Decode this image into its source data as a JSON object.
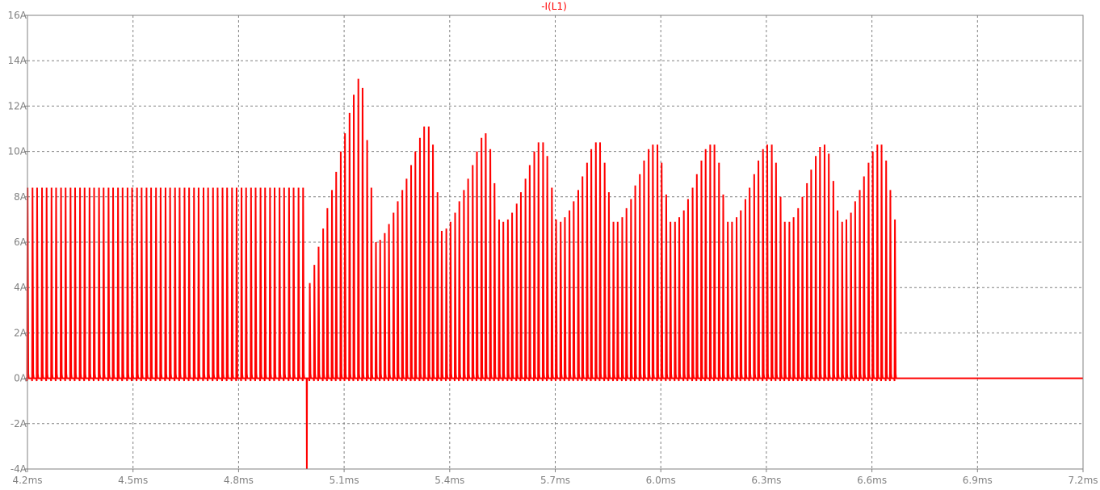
{
  "window": {
    "background": "#ffffff"
  },
  "chart_data": {
    "type": "line",
    "title": "-I(L1)",
    "xlabel": "",
    "ylabel": "",
    "x_unit": "ms",
    "y_unit": "A",
    "xlim": [
      4.2,
      7.2
    ],
    "ylim": [
      -4,
      16
    ],
    "x_ticks": [
      4.2,
      4.5,
      4.8,
      5.1,
      5.4,
      5.7,
      6.0,
      6.3,
      6.6,
      6.9,
      7.2
    ],
    "x_tick_labels": [
      "4.2ms",
      "4.5ms",
      "4.8ms",
      "5.1ms",
      "5.4ms",
      "5.7ms",
      "6.0ms",
      "6.3ms",
      "6.6ms",
      "6.9ms",
      "7.2ms"
    ],
    "y_ticks": [
      -4,
      -2,
      0,
      2,
      4,
      6,
      8,
      10,
      12,
      14,
      16
    ],
    "y_tick_labels": [
      "-4A",
      "-2A",
      "0A",
      "2A",
      "4A",
      "6A",
      "8A",
      "10A",
      "12A",
      "14A",
      "16A"
    ],
    "grid": true,
    "grid_style": "dashed",
    "colors": {
      "trace": "#ff0000",
      "axis": "#808080",
      "grid": "#808080",
      "tick_label": "#808080"
    },
    "series": [
      {
        "name": "-I(L1)",
        "color": "#ff0000",
        "pulse_width_ms": 0.004,
        "baseline": 0,
        "negative_spike": {
          "x": 4.994,
          "y": -4
        },
        "pulses": [
          [
            4.201,
            8.4
          ],
          [
            4.215,
            8.4
          ],
          [
            4.228,
            8.4
          ],
          [
            4.242,
            8.4
          ],
          [
            4.255,
            8.4
          ],
          [
            4.269,
            8.4
          ],
          [
            4.282,
            8.4
          ],
          [
            4.296,
            8.4
          ],
          [
            4.309,
            8.4
          ],
          [
            4.323,
            8.4
          ],
          [
            4.336,
            8.4
          ],
          [
            4.35,
            8.4
          ],
          [
            4.363,
            8.4
          ],
          [
            4.377,
            8.4
          ],
          [
            4.39,
            8.4
          ],
          [
            4.404,
            8.4
          ],
          [
            4.417,
            8.4
          ],
          [
            4.431,
            8.4
          ],
          [
            4.444,
            8.4
          ],
          [
            4.458,
            8.4
          ],
          [
            4.471,
            8.4
          ],
          [
            4.485,
            8.4
          ],
          [
            4.498,
            8.4
          ],
          [
            4.512,
            8.4
          ],
          [
            4.525,
            8.4
          ],
          [
            4.539,
            8.4
          ],
          [
            4.552,
            8.4
          ],
          [
            4.566,
            8.4
          ],
          [
            4.579,
            8.4
          ],
          [
            4.593,
            8.4
          ],
          [
            4.606,
            8.4
          ],
          [
            4.62,
            8.4
          ],
          [
            4.633,
            8.4
          ],
          [
            4.647,
            8.4
          ],
          [
            4.66,
            8.4
          ],
          [
            4.674,
            8.4
          ],
          [
            4.687,
            8.4
          ],
          [
            4.701,
            8.4
          ],
          [
            4.714,
            8.4
          ],
          [
            4.728,
            8.4
          ],
          [
            4.741,
            8.4
          ],
          [
            4.755,
            8.4
          ],
          [
            4.768,
            8.4
          ],
          [
            4.782,
            8.4
          ],
          [
            4.795,
            8.4
          ],
          [
            4.809,
            8.4
          ],
          [
            4.822,
            8.4
          ],
          [
            4.836,
            8.4
          ],
          [
            4.849,
            8.4
          ],
          [
            4.863,
            8.4
          ],
          [
            4.876,
            8.4
          ],
          [
            4.89,
            8.4
          ],
          [
            4.903,
            8.4
          ],
          [
            4.917,
            8.4
          ],
          [
            4.93,
            8.4
          ],
          [
            4.944,
            8.4
          ],
          [
            4.957,
            8.4
          ],
          [
            4.971,
            8.4
          ],
          [
            4.984,
            8.4
          ],
          [
            5.003,
            4.2
          ],
          [
            5.016,
            5.0
          ],
          [
            5.028,
            5.8
          ],
          [
            5.041,
            6.6
          ],
          [
            5.053,
            7.5
          ],
          [
            5.066,
            8.3
          ],
          [
            5.078,
            9.1
          ],
          [
            5.091,
            10.0
          ],
          [
            5.103,
            10.8
          ],
          [
            5.116,
            11.7
          ],
          [
            5.128,
            12.5
          ],
          [
            5.141,
            13.2
          ],
          [
            5.153,
            12.8
          ],
          [
            5.166,
            10.5
          ],
          [
            5.178,
            8.4
          ],
          [
            5.191,
            6.0
          ],
          [
            5.203,
            6.1
          ],
          [
            5.216,
            6.4
          ],
          [
            5.228,
            6.8
          ],
          [
            5.241,
            7.3
          ],
          [
            5.253,
            7.8
          ],
          [
            5.266,
            8.3
          ],
          [
            5.278,
            8.8
          ],
          [
            5.291,
            9.4
          ],
          [
            5.303,
            10.0
          ],
          [
            5.316,
            10.6
          ],
          [
            5.328,
            11.1
          ],
          [
            5.341,
            11.1
          ],
          [
            5.353,
            10.3
          ],
          [
            5.366,
            8.2
          ],
          [
            5.378,
            6.5
          ],
          [
            5.391,
            6.6
          ],
          [
            5.403,
            6.9
          ],
          [
            5.416,
            7.3
          ],
          [
            5.428,
            7.8
          ],
          [
            5.441,
            8.3
          ],
          [
            5.453,
            8.8
          ],
          [
            5.466,
            9.4
          ],
          [
            5.478,
            10.0
          ],
          [
            5.491,
            10.6
          ],
          [
            5.503,
            10.8
          ],
          [
            5.516,
            10.1
          ],
          [
            5.528,
            8.6
          ],
          [
            5.541,
            7.0
          ],
          [
            5.553,
            6.9
          ],
          [
            5.566,
            7.0
          ],
          [
            5.578,
            7.3
          ],
          [
            5.591,
            7.7
          ],
          [
            5.603,
            8.2
          ],
          [
            5.616,
            8.8
          ],
          [
            5.628,
            9.4
          ],
          [
            5.641,
            10.0
          ],
          [
            5.653,
            10.4
          ],
          [
            5.666,
            10.4
          ],
          [
            5.678,
            9.8
          ],
          [
            5.691,
            8.4
          ],
          [
            5.703,
            7.0
          ],
          [
            5.716,
            6.9
          ],
          [
            5.728,
            7.1
          ],
          [
            5.741,
            7.4
          ],
          [
            5.753,
            7.8
          ],
          [
            5.766,
            8.3
          ],
          [
            5.778,
            8.9
          ],
          [
            5.791,
            9.5
          ],
          [
            5.803,
            10.1
          ],
          [
            5.816,
            10.4
          ],
          [
            5.828,
            10.4
          ],
          [
            5.841,
            9.5
          ],
          [
            5.853,
            8.2
          ],
          [
            5.866,
            6.9
          ],
          [
            5.878,
            6.9
          ],
          [
            5.891,
            7.1
          ],
          [
            5.903,
            7.5
          ],
          [
            5.916,
            7.9
          ],
          [
            5.928,
            8.5
          ],
          [
            5.941,
            9.0
          ],
          [
            5.953,
            9.6
          ],
          [
            5.966,
            10.1
          ],
          [
            5.978,
            10.3
          ],
          [
            5.991,
            10.3
          ],
          [
            6.003,
            9.5
          ],
          [
            6.016,
            8.1
          ],
          [
            6.028,
            6.9
          ],
          [
            6.041,
            6.9
          ],
          [
            6.053,
            7.1
          ],
          [
            6.066,
            7.4
          ],
          [
            6.078,
            7.9
          ],
          [
            6.091,
            8.4
          ],
          [
            6.103,
            9.0
          ],
          [
            6.116,
            9.6
          ],
          [
            6.128,
            10.1
          ],
          [
            6.141,
            10.3
          ],
          [
            6.153,
            10.3
          ],
          [
            6.166,
            9.5
          ],
          [
            6.178,
            8.1
          ],
          [
            6.191,
            6.9
          ],
          [
            6.203,
            6.9
          ],
          [
            6.216,
            7.1
          ],
          [
            6.228,
            7.4
          ],
          [
            6.241,
            7.9
          ],
          [
            6.253,
            8.4
          ],
          [
            6.266,
            9.0
          ],
          [
            6.278,
            9.6
          ],
          [
            6.291,
            10.1
          ],
          [
            6.303,
            10.3
          ],
          [
            6.316,
            10.3
          ],
          [
            6.328,
            9.5
          ],
          [
            6.341,
            8.0
          ],
          [
            6.353,
            6.9
          ],
          [
            6.366,
            6.9
          ],
          [
            6.378,
            7.1
          ],
          [
            6.391,
            7.5
          ],
          [
            6.403,
            8.0
          ],
          [
            6.416,
            8.6
          ],
          [
            6.428,
            9.2
          ],
          [
            6.441,
            9.8
          ],
          [
            6.453,
            10.2
          ],
          [
            6.466,
            10.3
          ],
          [
            6.478,
            9.9
          ],
          [
            6.491,
            8.7
          ],
          [
            6.503,
            7.4
          ],
          [
            6.516,
            6.9
          ],
          [
            6.528,
            7.0
          ],
          [
            6.541,
            7.3
          ],
          [
            6.553,
            7.8
          ],
          [
            6.566,
            8.3
          ],
          [
            6.578,
            8.9
          ],
          [
            6.591,
            9.5
          ],
          [
            6.603,
            10.0
          ],
          [
            6.616,
            10.3
          ],
          [
            6.628,
            10.3
          ],
          [
            6.641,
            9.6
          ],
          [
            6.653,
            8.3
          ],
          [
            6.666,
            7.0
          ]
        ]
      }
    ]
  }
}
